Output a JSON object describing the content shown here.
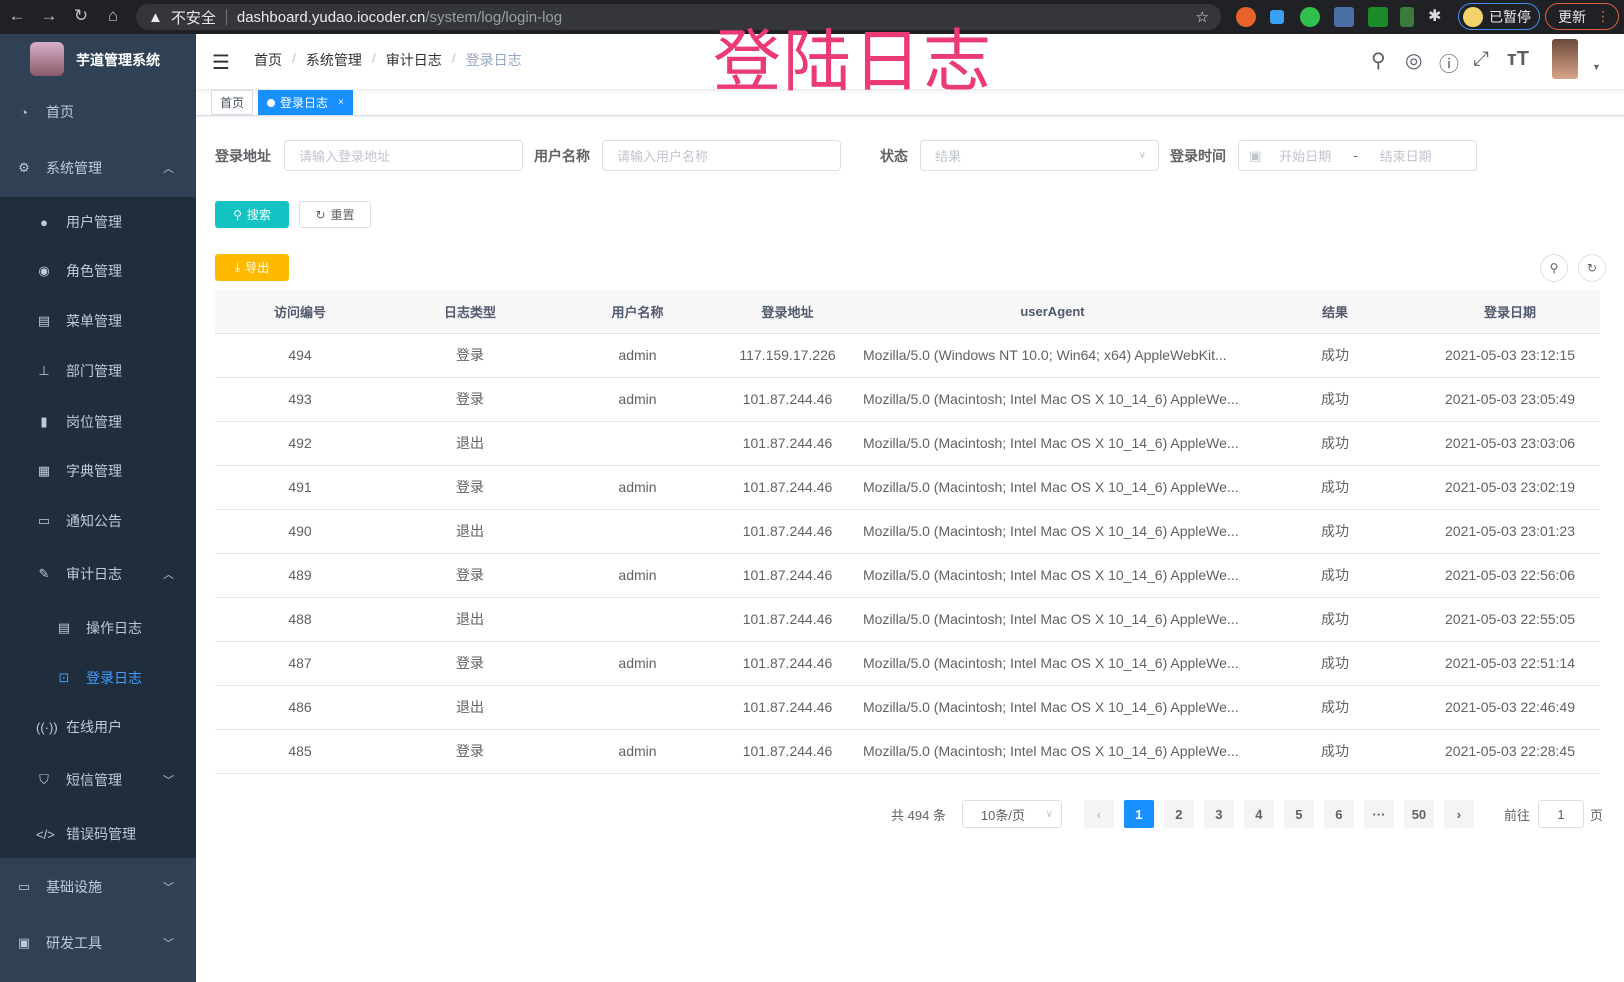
{
  "browser": {
    "insecure_label": "不安全",
    "url_host": "dashboard.yudao.iocoder.cn",
    "url_path": "/system/log/login-log",
    "paused_label": "已暂停",
    "update_label": "更新"
  },
  "overlay_title": "登陆日志",
  "sidebar": {
    "title": "芋道管理系统",
    "items": [
      {
        "label": "首页",
        "icon": "dashboard-icon"
      },
      {
        "label": "系统管理",
        "icon": "gear-icon",
        "expanded": true
      },
      {
        "label": "用户管理",
        "icon": "user-icon"
      },
      {
        "label": "角色管理",
        "icon": "peoples-icon"
      },
      {
        "label": "菜单管理",
        "icon": "tree-table-icon"
      },
      {
        "label": "部门管理",
        "icon": "tree-icon"
      },
      {
        "label": "岗位管理",
        "icon": "post-icon"
      },
      {
        "label": "字典管理",
        "icon": "dict-icon"
      },
      {
        "label": "通知公告",
        "icon": "message-icon"
      },
      {
        "label": "审计日志",
        "icon": "log-icon",
        "expanded": true
      },
      {
        "label": "操作日志",
        "icon": "form-icon"
      },
      {
        "label": "登录日志",
        "icon": "logininfor-icon",
        "active": true
      },
      {
        "label": "在线用户",
        "icon": "online-icon"
      },
      {
        "label": "短信管理",
        "icon": "validCode-icon"
      },
      {
        "label": "错误码管理",
        "icon": "code-icon"
      },
      {
        "label": "基础设施",
        "icon": "monitor-icon"
      },
      {
        "label": "研发工具",
        "icon": "tool-icon"
      }
    ]
  },
  "breadcrumb": [
    "首页",
    "系统管理",
    "审计日志",
    "登录日志"
  ],
  "tags": [
    {
      "label": "首页"
    },
    {
      "label": "登录日志",
      "active": true
    }
  ],
  "filters": {
    "address_label": "登录地址",
    "address_placeholder": "请输入登录地址",
    "username_label": "用户名称",
    "username_placeholder": "请输入用户名称",
    "status_label": "状态",
    "status_placeholder": "结果",
    "time_label": "登录时间",
    "start_placeholder": "开始日期",
    "range_sep": "-",
    "end_placeholder": "结束日期",
    "search_label": "搜索",
    "reset_label": "重置",
    "export_label": "导出"
  },
  "colors": {
    "sidebar": "#304156",
    "accent": "#1890ff",
    "search": "#13c2c2",
    "export": "#ffba00",
    "overlay": "#ec3a77"
  },
  "table": {
    "headers": [
      "访问编号",
      "日志类型",
      "用户名称",
      "登录地址",
      "userAgent",
      "结果",
      "登录日期"
    ],
    "rows": [
      [
        "494",
        "登录",
        "admin",
        "117.159.17.226",
        "Mozilla/5.0 (Windows NT 10.0; Win64; x64) AppleWebKit...",
        "成功",
        "2021-05-03 23:12:15"
      ],
      [
        "493",
        "登录",
        "admin",
        "101.87.244.46",
        "Mozilla/5.0 (Macintosh; Intel Mac OS X 10_14_6) AppleWe...",
        "成功",
        "2021-05-03 23:05:49"
      ],
      [
        "492",
        "退出",
        "",
        "101.87.244.46",
        "Mozilla/5.0 (Macintosh; Intel Mac OS X 10_14_6) AppleWe...",
        "成功",
        "2021-05-03 23:03:06"
      ],
      [
        "491",
        "登录",
        "admin",
        "101.87.244.46",
        "Mozilla/5.0 (Macintosh; Intel Mac OS X 10_14_6) AppleWe...",
        "成功",
        "2021-05-03 23:02:19"
      ],
      [
        "490",
        "退出",
        "",
        "101.87.244.46",
        "Mozilla/5.0 (Macintosh; Intel Mac OS X 10_14_6) AppleWe...",
        "成功",
        "2021-05-03 23:01:23"
      ],
      [
        "489",
        "登录",
        "admin",
        "101.87.244.46",
        "Mozilla/5.0 (Macintosh; Intel Mac OS X 10_14_6) AppleWe...",
        "成功",
        "2021-05-03 22:56:06"
      ],
      [
        "488",
        "退出",
        "",
        "101.87.244.46",
        "Mozilla/5.0 (Macintosh; Intel Mac OS X 10_14_6) AppleWe...",
        "成功",
        "2021-05-03 22:55:05"
      ],
      [
        "487",
        "登录",
        "admin",
        "101.87.244.46",
        "Mozilla/5.0 (Macintosh; Intel Mac OS X 10_14_6) AppleWe...",
        "成功",
        "2021-05-03 22:51:14"
      ],
      [
        "486",
        "退出",
        "",
        "101.87.244.46",
        "Mozilla/5.0 (Macintosh; Intel Mac OS X 10_14_6) AppleWe...",
        "成功",
        "2021-05-03 22:46:49"
      ],
      [
        "485",
        "登录",
        "admin",
        "101.87.244.46",
        "Mozilla/5.0 (Macintosh; Intel Mac OS X 10_14_6) AppleWe...",
        "成功",
        "2021-05-03 22:28:45"
      ]
    ]
  },
  "pagination": {
    "total_text": "共 494 条",
    "page_size": "10条/页",
    "pages": [
      "1",
      "2",
      "3",
      "4",
      "5",
      "6",
      "···",
      "50"
    ],
    "current": "1",
    "goto_label": "前往",
    "goto_value": "1",
    "goto_suffix": "页"
  }
}
